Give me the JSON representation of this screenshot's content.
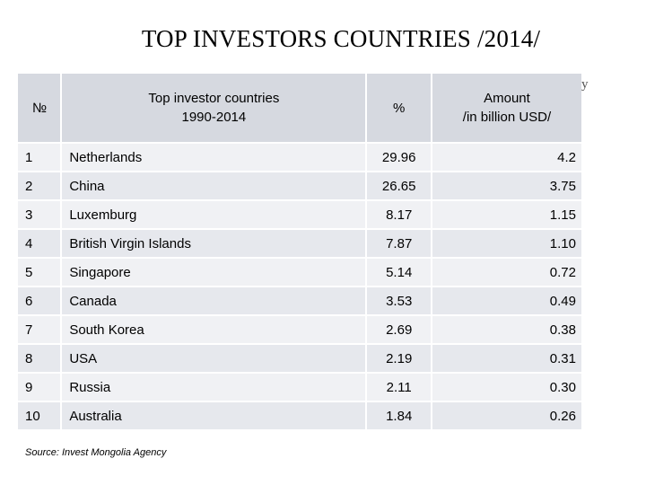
{
  "title": "TOP INVESTORS COUNTRIES  /2014/",
  "stray_mark": "y",
  "table": {
    "headers": {
      "no": "№",
      "country_line1": "Top investor countries",
      "country_line2": "1990-2014",
      "pct": "%",
      "amount_line1": "Amount",
      "amount_line2": "/in billion USD/"
    },
    "rows": [
      {
        "no": "1",
        "country": "Netherlands",
        "pct": "29.96",
        "amount": "4.2"
      },
      {
        "no": "2",
        "country": "China",
        "pct": "26.65",
        "amount": "3.75"
      },
      {
        "no": "3",
        "country": "Luxemburg",
        "pct": "8.17",
        "amount": "1.15"
      },
      {
        "no": "4",
        "country": "British Virgin Islands",
        "pct": "7.87",
        "amount": "1.10"
      },
      {
        "no": "5",
        "country": "Singapore",
        "pct": "5.14",
        "amount": "0.72"
      },
      {
        "no": "6",
        "country": "Canada",
        "pct": "3.53",
        "amount": "0.49"
      },
      {
        "no": "7",
        "country": "South Korea",
        "pct": "2.69",
        "amount": "0.38"
      },
      {
        "no": "8",
        "country": "USA",
        "pct": "2.19",
        "amount": "0.31"
      },
      {
        "no": "9",
        "country": "Russia",
        "pct": "2.11",
        "amount": "0.30"
      },
      {
        "no": "10",
        "country": "Australia",
        "pct": "1.84",
        "amount": "0.26"
      }
    ]
  },
  "source": "Source: Invest Mongolia Agency",
  "colors": {
    "header_bg": "#d6d9e0",
    "row_light": "#f0f1f4",
    "row_dark": "#e6e8ed"
  }
}
